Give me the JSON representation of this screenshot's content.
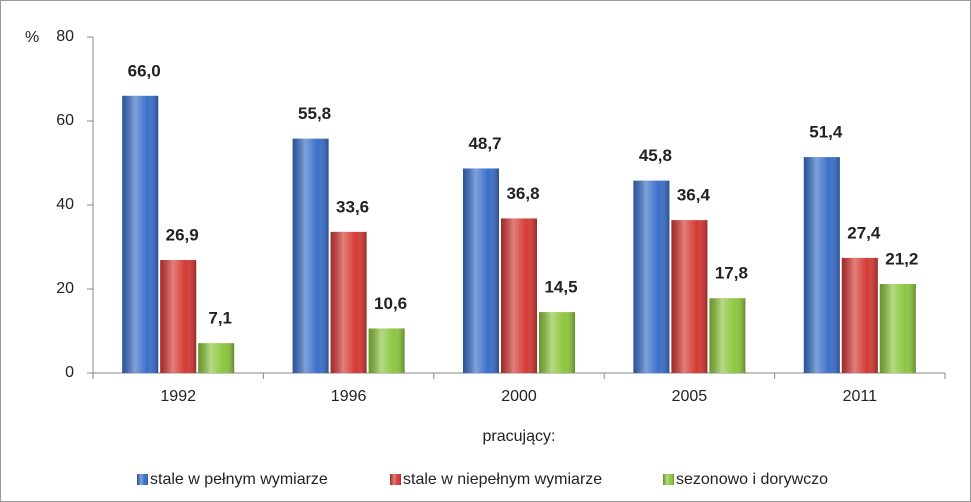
{
  "chart_data": {
    "type": "bar",
    "y_label": "%",
    "x_label": "pracujący:",
    "categories": [
      "1992",
      "1996",
      "2000",
      "2005",
      "2011"
    ],
    "series": [
      {
        "name": "stale w pełnym wymiarze",
        "color": "#3a6fc9",
        "values": [
          66.0,
          55.8,
          48.7,
          45.8,
          51.4
        ],
        "value_labels": [
          "66,0",
          "55,8",
          "48,7",
          "45,8",
          "51,4"
        ]
      },
      {
        "name": "stale w niepełnym wymiarze",
        "color": "#d53a35",
        "values": [
          26.9,
          33.6,
          36.8,
          36.4,
          27.4
        ],
        "value_labels": [
          "26,9",
          "33,6",
          "36,8",
          "36,4",
          "27,4"
        ]
      },
      {
        "name": "sezonowo i dorywczo",
        "color": "#8dc63f",
        "values": [
          7.1,
          10.6,
          14.5,
          17.8,
          21.2
        ],
        "value_labels": [
          "7,1",
          "10,6",
          "14,5",
          "17,8",
          "21,2"
        ]
      }
    ],
    "ylim": [
      0,
      80
    ],
    "yticks": [
      0,
      20,
      40,
      60,
      80
    ],
    "legend": "bottom"
  }
}
